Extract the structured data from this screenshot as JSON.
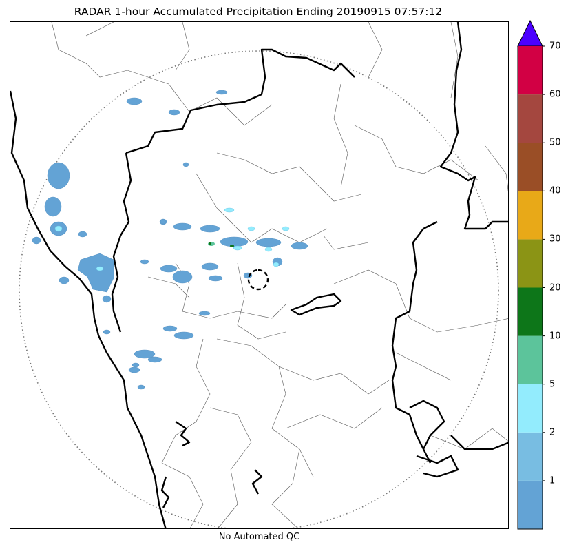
{
  "title": "RADAR 1-hour Accumulated Precipitation Ending 20190915 07:57:12",
  "footer_note": "No Automated QC",
  "colorbar": {
    "extend": "max",
    "extend_color": "#4b00ff",
    "ticks": [
      "1",
      "2",
      "5",
      "10",
      "20",
      "30",
      "40",
      "50",
      "60",
      "70"
    ],
    "bins": [
      {
        "color": "#63a3d5"
      },
      {
        "color": "#78bde2"
      },
      {
        "color": "#93ecfd"
      },
      {
        "color": "#5cc49b"
      },
      {
        "color": "#0d7619"
      },
      {
        "color": "#8b9415"
      },
      {
        "color": "#e8a918"
      },
      {
        "color": "#9a4e26"
      },
      {
        "color": "#a4473f"
      },
      {
        "color": "#d20044"
      }
    ]
  },
  "map": {
    "range_ring_style": "dotted",
    "radar_site_marker": "dashed-circle",
    "coastline_color": "#000000",
    "district_border_color": "#444444",
    "precip_dominant_color": "#63a3d5"
  }
}
